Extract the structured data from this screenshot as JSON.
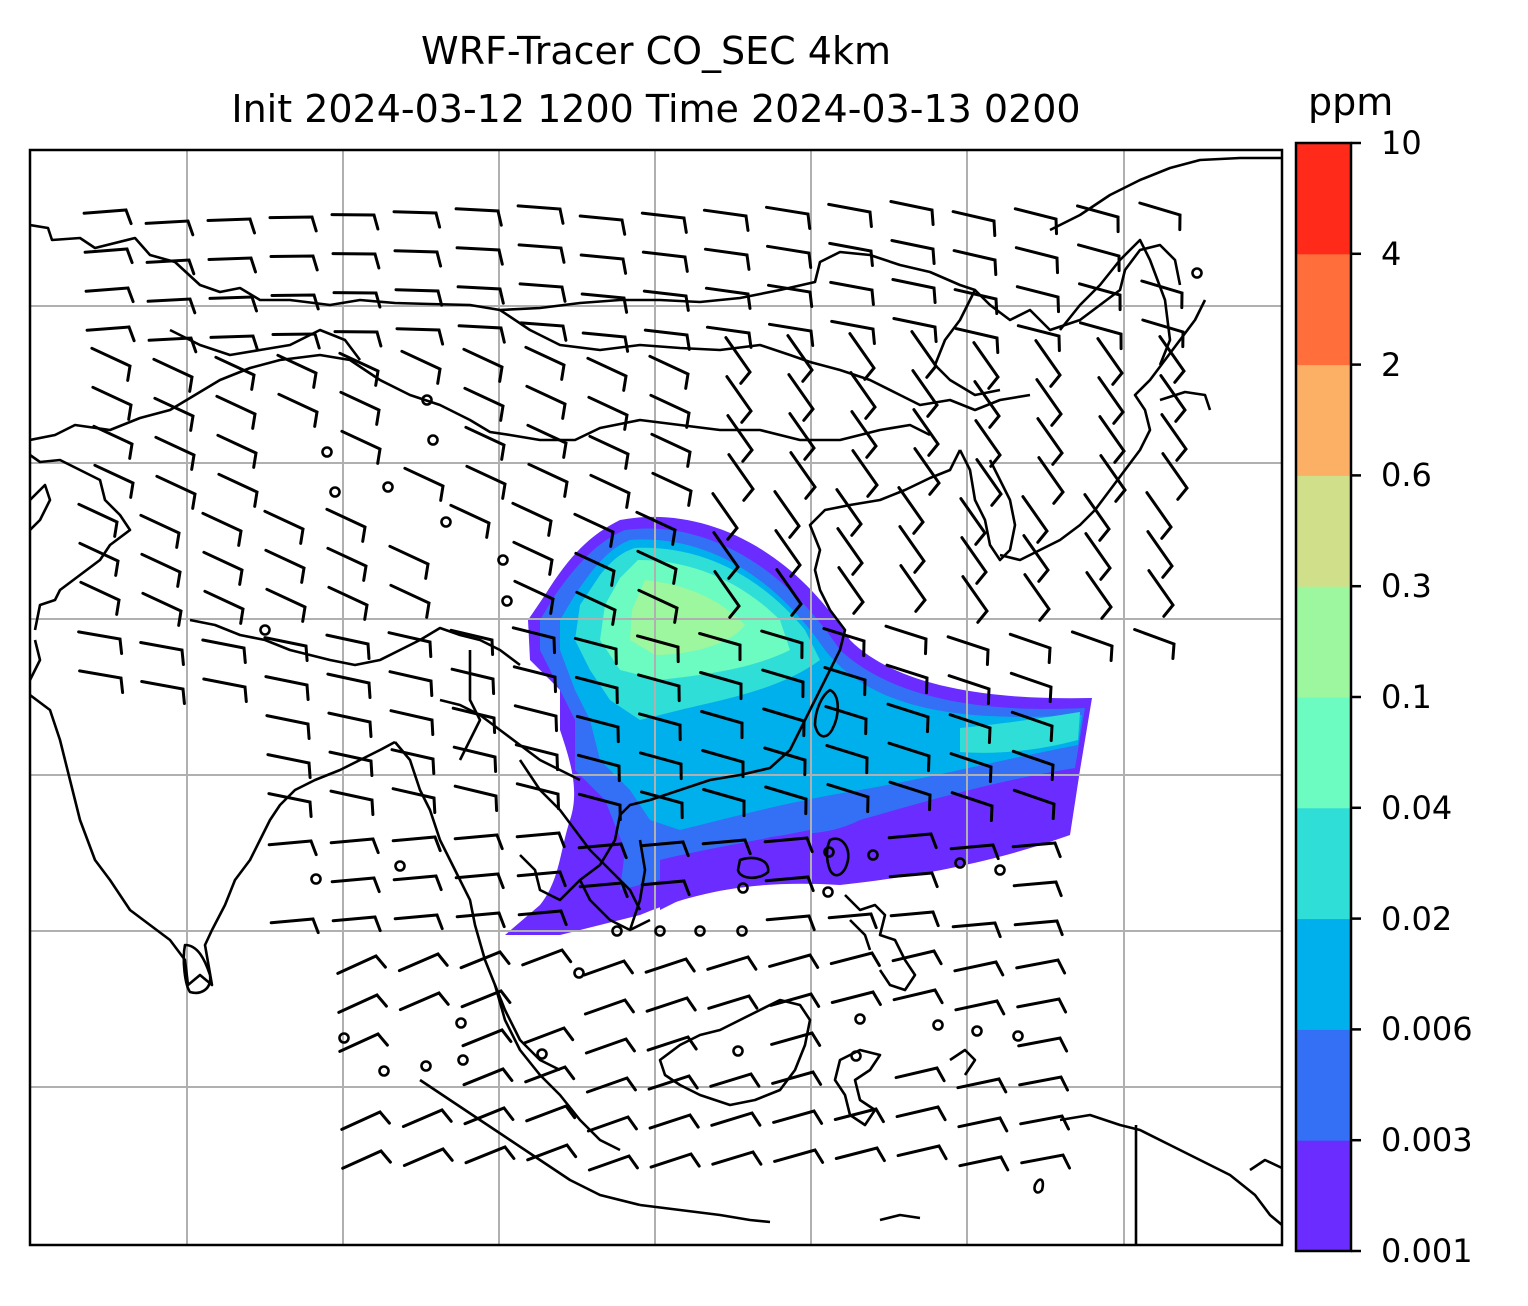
{
  "title": {
    "line1": "WRF-Tracer CO_SEC 4km",
    "line2": "Init 2024-03-12 1200 Time 2024-03-13 0200"
  },
  "colorbar": {
    "unit": "ppm",
    "ticks": [
      "0.001",
      "0.003",
      "0.006",
      "0.02",
      "0.04",
      "0.1",
      "0.3",
      "0.6",
      "2",
      "4",
      "10"
    ],
    "colors": [
      "#6a2cff",
      "#3370f5",
      "#00b0ec",
      "#2fded6",
      "#6cfbc0",
      "#9cf79e",
      "#d0e08a",
      "#fcb065",
      "#ff6e3b",
      "#ff2a1a"
    ]
  }
}
